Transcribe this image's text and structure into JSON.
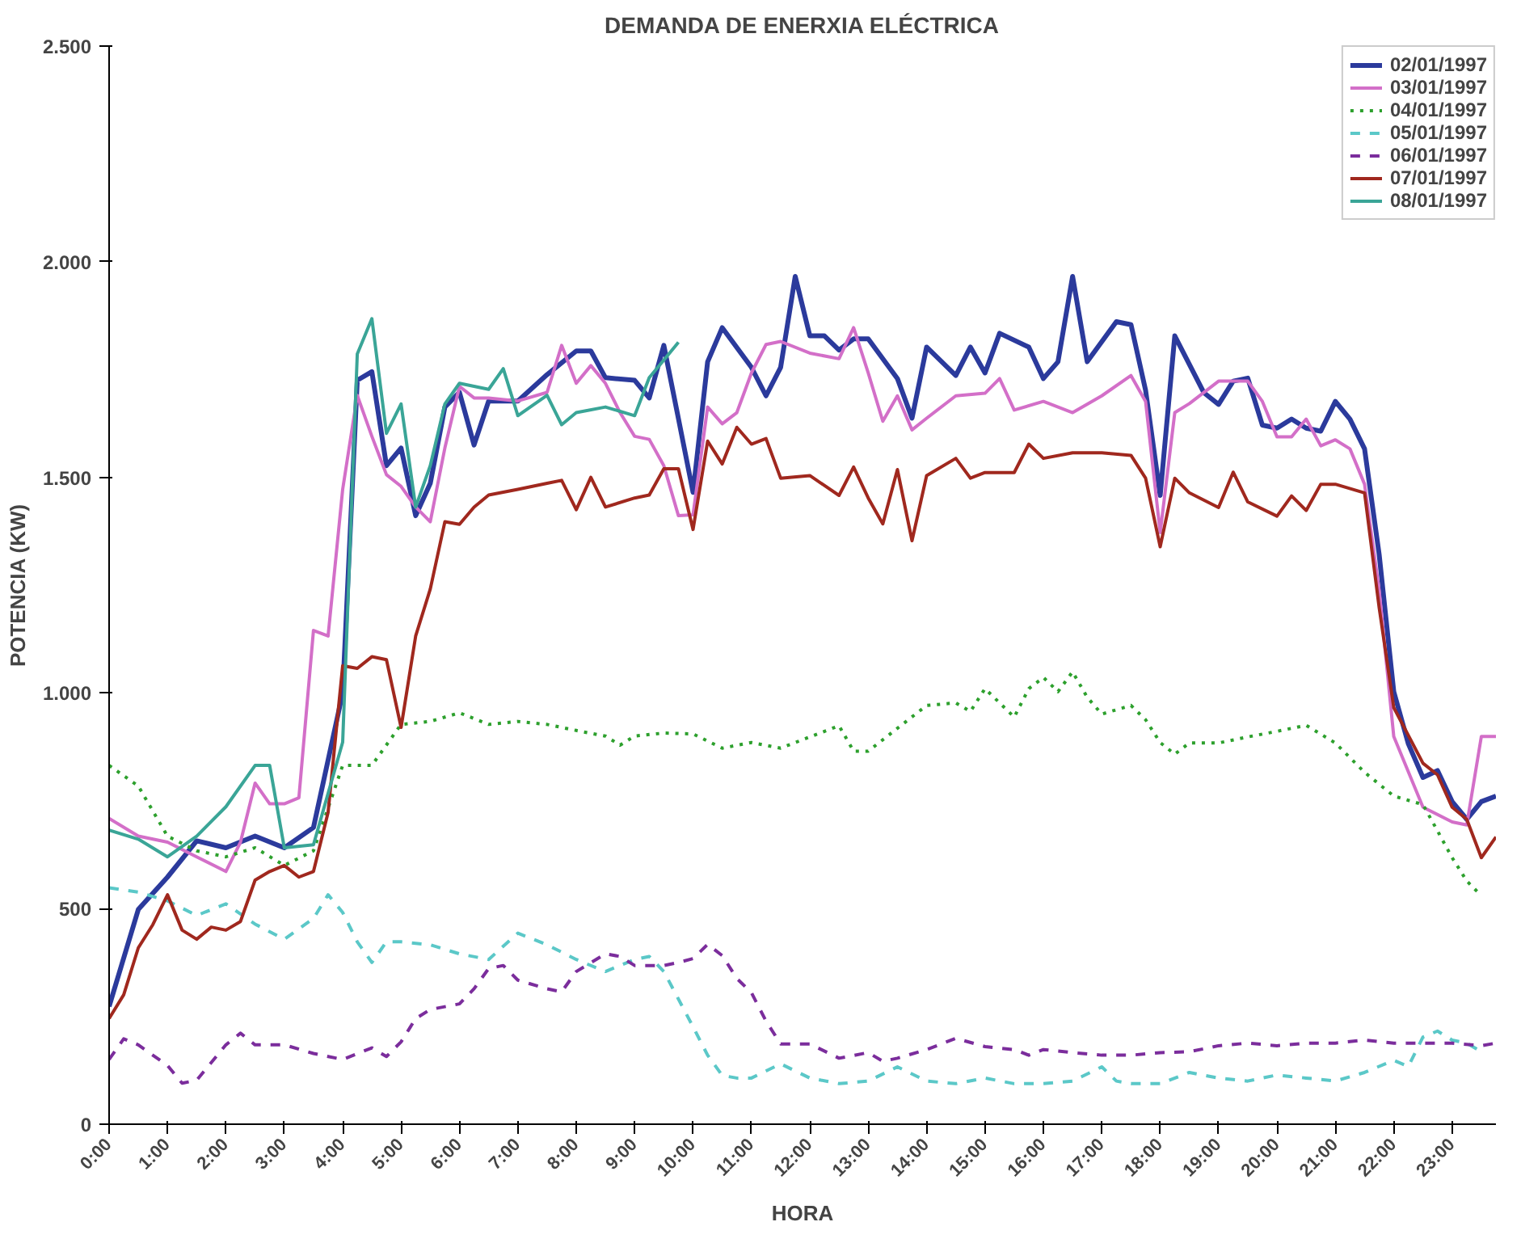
{
  "chart_data": {
    "type": "line",
    "title": "DEMANDA DE ENERXIA ELÉCTRICA",
    "xlabel": "HORA",
    "ylabel": "POTENCIA (KW)",
    "xlim": [
      0,
      23.75
    ],
    "xticks": [
      {
        "value": 0,
        "label": "0:00"
      },
      {
        "value": 1,
        "label": "1:00"
      },
      {
        "value": 2,
        "label": "2:00"
      },
      {
        "value": 3,
        "label": "3:00"
      },
      {
        "value": 4,
        "label": "4:00"
      },
      {
        "value": 5,
        "label": "5:00"
      },
      {
        "value": 6,
        "label": "6:00"
      },
      {
        "value": 7,
        "label": "7:00"
      },
      {
        "value": 8,
        "label": "8:00"
      },
      {
        "value": 9,
        "label": "9:00"
      },
      {
        "value": 10,
        "label": "10:00"
      },
      {
        "value": 11,
        "label": "11:00"
      },
      {
        "value": 12,
        "label": "12:00"
      },
      {
        "value": 13,
        "label": "13:00"
      },
      {
        "value": 14,
        "label": "14:00"
      },
      {
        "value": 15,
        "label": "15:00"
      },
      {
        "value": 16,
        "label": "16:00"
      },
      {
        "value": 17,
        "label": "17:00"
      },
      {
        "value": 18,
        "label": "18:00"
      },
      {
        "value": 19,
        "label": "19:00"
      },
      {
        "value": 20,
        "label": "20:00"
      },
      {
        "value": 21,
        "label": "21:00"
      },
      {
        "value": 22,
        "label": "22:00"
      },
      {
        "value": 23,
        "label": "23:00"
      }
    ],
    "ylim": [
      0,
      2500
    ],
    "yticks": [
      0,
      {
        "value": 500,
        "label": "500"
      },
      {
        "value": 1000,
        "label": "1.000"
      },
      {
        "value": 1500,
        "label": "1.500"
      },
      {
        "value": 2000,
        "label": "2.000"
      },
      {
        "value": 2500,
        "label": "2.500"
      }
    ],
    "grid": false,
    "legend": "top right",
    "marker": "none",
    "series": [
      {
        "name": "02/01/1997",
        "color": "#2b3a9c",
        "line_style": "solid",
        "x": [
          0,
          0.5,
          1,
          1.5,
          2,
          2.5,
          3,
          3.5,
          4,
          4.25,
          4.5,
          4.75,
          5,
          5.25,
          5.5,
          5.75,
          6,
          6.25,
          6.5,
          7,
          7.5,
          8,
          8.25,
          8.5,
          9,
          9.25,
          9.5,
          9.75,
          10,
          10.25,
          10.5,
          11,
          11.25,
          11.5,
          11.75,
          12,
          12.25,
          12.5,
          12.75,
          13,
          13.5,
          13.75,
          14,
          14.5,
          14.75,
          15,
          15.25,
          15.75,
          16,
          16.25,
          16.5,
          16.75,
          17.25,
          17.5,
          17.75,
          18,
          18.25,
          18.75,
          19,
          19.25,
          19.5,
          19.75,
          20,
          20.25,
          20.5,
          20.75,
          21,
          21.25,
          21.5,
          21.75,
          22,
          22.25,
          22.5,
          22.75,
          23,
          23.25,
          23.5,
          23.75
        ],
        "values": [
          273,
          498,
          573,
          657,
          641,
          668,
          641,
          688,
          1000,
          1725,
          1745,
          1527,
          1568,
          1411,
          1486,
          1663,
          1697,
          1575,
          1677,
          1677,
          1738,
          1793,
          1793,
          1731,
          1725,
          1684,
          1806,
          1636,
          1465,
          1768,
          1847,
          1755,
          1689,
          1755,
          1966,
          1828,
          1828,
          1795,
          1821,
          1821,
          1729,
          1637,
          1802,
          1736,
          1802,
          1742,
          1834,
          1802,
          1729,
          1768,
          1966,
          1768,
          1861,
          1854,
          1702,
          1458,
          1828,
          1696,
          1669,
          1723,
          1730,
          1621,
          1614,
          1635,
          1614,
          1607,
          1676,
          1635,
          1566,
          1321,
          1003,
          882,
          804,
          820,
          748,
          707,
          748,
          761
        ]
      },
      {
        "name": "03/01/1997",
        "color": "#d36fc8",
        "line_style": "solid",
        "x": [
          0,
          0.5,
          1,
          1.5,
          2,
          2.25,
          2.5,
          2.75,
          3,
          3.25,
          3.5,
          3.75,
          4,
          4.25,
          4.5,
          4.75,
          5,
          5.25,
          5.5,
          5.75,
          6,
          6.25,
          6.5,
          7,
          7.5,
          7.75,
          8,
          8.25,
          8.5,
          8.75,
          9,
          9.25,
          9.5,
          9.75,
          10,
          10.25,
          10.5,
          10.75,
          11,
          11.25,
          11.5,
          12,
          12.5,
          12.75,
          13,
          13.25,
          13.5,
          13.75,
          14,
          14.5,
          15,
          15.25,
          15.5,
          16,
          16.5,
          17,
          17.5,
          17.75,
          18,
          18.25,
          18.5,
          19,
          19.5,
          19.75,
          20,
          20.25,
          20.5,
          20.75,
          21,
          21.25,
          21.5,
          21.75,
          22,
          22.5,
          23,
          23.25,
          23.5,
          23.75
        ],
        "values": [
          709,
          668,
          654,
          620,
          586,
          654,
          791,
          743,
          743,
          757,
          1145,
          1132,
          1472,
          1690,
          1595,
          1506,
          1479,
          1431,
          1397,
          1568,
          1711,
          1684,
          1684,
          1677,
          1697,
          1806,
          1718,
          1759,
          1718,
          1650,
          1595,
          1588,
          1527,
          1411,
          1413,
          1663,
          1624,
          1650,
          1742,
          1808,
          1815,
          1788,
          1775,
          1847,
          1742,
          1630,
          1689,
          1610,
          1637,
          1689,
          1695,
          1729,
          1656,
          1676,
          1650,
          1689,
          1736,
          1676,
          1372,
          1650,
          1671,
          1723,
          1723,
          1676,
          1594,
          1594,
          1635,
          1573,
          1587,
          1566,
          1484,
          1238,
          899,
          735,
          701,
          694,
          899,
          899
        ]
      },
      {
        "name": "04/01/1997",
        "color": "#2da02d",
        "line_style": "dotted",
        "x": [
          0,
          0.5,
          1,
          1.5,
          2,
          2.5,
          3,
          3.5,
          4,
          4.5,
          5,
          5.5,
          6,
          6.5,
          7,
          7.5,
          8,
          8.5,
          8.75,
          9,
          9.5,
          10,
          10.5,
          11,
          11.5,
          12,
          12.5,
          12.75,
          13,
          13.5,
          14,
          14.5,
          14.75,
          15,
          15.25,
          15.5,
          15.75,
          16,
          16.25,
          16.5,
          16.75,
          17,
          17.5,
          17.75,
          18,
          18.25,
          18.5,
          19,
          19.5,
          20,
          20.5,
          21,
          21.5,
          22,
          22.5,
          22.75,
          23,
          23.25,
          23.5
        ],
        "values": [
          832,
          784,
          668,
          634,
          620,
          641,
          600,
          634,
          832,
          832,
          927,
          934,
          954,
          927,
          934,
          927,
          913,
          900,
          879,
          900,
          907,
          905,
          872,
          885,
          872,
          898,
          924,
          865,
          865,
          918,
          971,
          977,
          957,
          1010,
          977,
          944,
          1010,
          1036,
          1003,
          1049,
          990,
          951,
          971,
          938,
          885,
          858,
          884,
          884,
          898,
          911,
          925,
          884,
          816,
          761,
          741,
          680,
          618,
          564,
          530
        ]
      },
      {
        "name": "05/01/1997",
        "color": "#5bc8c8",
        "line_style": "dashed",
        "x": [
          0,
          0.5,
          1,
          1.5,
          2,
          2.5,
          3,
          3.5,
          3.75,
          4,
          4.25,
          4.5,
          4.75,
          5,
          5.5,
          6,
          6.5,
          7,
          7.5,
          8,
          8.5,
          9,
          9.25,
          9.5,
          10,
          10.25,
          10.5,
          10.75,
          11,
          11.5,
          12,
          12.5,
          13,
          13.5,
          14,
          14.5,
          15,
          15.5,
          16,
          16.5,
          17,
          17.25,
          17.5,
          18,
          18.5,
          19,
          19.5,
          20,
          20.5,
          21,
          21.5,
          22,
          22.25,
          22.5,
          22.75,
          23,
          23.25,
          23.5
        ],
        "values": [
          548,
          538,
          518,
          484,
          511,
          464,
          429,
          477,
          532,
          491,
          423,
          375,
          423,
          423,
          416,
          395,
          382,
          443,
          416,
          382,
          354,
          382,
          389,
          354,
          226,
          160,
          113,
          107,
          107,
          140,
          107,
          94,
          100,
          133,
          100,
          94,
          107,
          94,
          94,
          100,
          133,
          100,
          94,
          94,
          120,
          107,
          100,
          114,
          107,
          100,
          120,
          148,
          134,
          202,
          216,
          195,
          188,
          168
        ]
      },
      {
        "name": "06/01/1997",
        "color": "#7b2d9c",
        "line_style": "dashed",
        "x": [
          0,
          0.25,
          0.5,
          1,
          1.25,
          1.5,
          2,
          2.25,
          2.5,
          3,
          3.5,
          4,
          4.5,
          4.75,
          5,
          5.25,
          5.5,
          6,
          6.25,
          6.5,
          6.75,
          7,
          7.5,
          7.75,
          8,
          8.5,
          8.75,
          9,
          9.5,
          9.75,
          10,
          10.25,
          10.5,
          10.75,
          11,
          11.25,
          11.5,
          12,
          12.5,
          13,
          13.25,
          13.5,
          14,
          14.5,
          15,
          15.5,
          15.75,
          16,
          16.5,
          17,
          17.25,
          17.5,
          18,
          18.5,
          19,
          19.5,
          20,
          20.5,
          21,
          21.5,
          22,
          22.5,
          23,
          23.5,
          23.75
        ],
        "values": [
          150,
          198,
          184,
          136,
          95,
          102,
          184,
          211,
          184,
          184,
          164,
          150,
          177,
          157,
          191,
          245,
          266,
          279,
          314,
          361,
          368,
          334,
          314,
          307,
          354,
          395,
          389,
          368,
          368,
          375,
          384,
          417,
          391,
          338,
          305,
          239,
          186,
          186,
          153,
          166,
          146,
          153,
          173,
          199,
          180,
          173,
          160,
          173,
          166,
          160,
          160,
          160,
          166,
          168,
          182,
          188,
          182,
          188,
          188,
          195,
          188,
          188,
          188,
          182,
          188
        ]
      },
      {
        "name": "07/01/1997",
        "color": "#a0281e",
        "line_style": "solid",
        "x": [
          0,
          0.25,
          0.5,
          0.75,
          1,
          1.25,
          1.5,
          1.75,
          2,
          2.25,
          2.5,
          2.75,
          3,
          3.25,
          3.5,
          3.75,
          4,
          4.25,
          4.5,
          4.75,
          5,
          5.25,
          5.5,
          5.75,
          6,
          6.25,
          6.5,
          7,
          7.5,
          7.75,
          8,
          8.25,
          8.5,
          9,
          9.25,
          9.5,
          9.75,
          10,
          10.25,
          10.5,
          10.75,
          11,
          11.25,
          11.5,
          12,
          12.5,
          12.75,
          13,
          13.25,
          13.5,
          13.75,
          14,
          14.5,
          14.75,
          15,
          15.5,
          15.75,
          16,
          16.5,
          17,
          17.5,
          17.75,
          18,
          18.25,
          18.5,
          19,
          19.25,
          19.5,
          20,
          20.25,
          20.5,
          20.75,
          21,
          21.5,
          21.75,
          22,
          22.5,
          22.75,
          23,
          23.25,
          23.5,
          23.75
        ],
        "values": [
          245,
          300,
          409,
          463,
          532,
          450,
          429,
          457,
          450,
          470,
          566,
          586,
          600,
          573,
          586,
          723,
          1063,
          1057,
          1084,
          1077,
          920,
          1132,
          1241,
          1397,
          1391,
          1431,
          1459,
          1472,
          1486,
          1493,
          1425,
          1500,
          1431,
          1452,
          1459,
          1520,
          1520,
          1379,
          1584,
          1531,
          1616,
          1577,
          1590,
          1498,
          1504,
          1458,
          1524,
          1452,
          1392,
          1518,
          1353,
          1504,
          1544,
          1498,
          1511,
          1511,
          1577,
          1544,
          1557,
          1557,
          1551,
          1498,
          1339,
          1498,
          1464,
          1430,
          1512,
          1443,
          1410,
          1457,
          1423,
          1484,
          1484,
          1464,
          1198,
          966,
          837,
          810,
          735,
          707,
          618,
          666
        ]
      },
      {
        "name": "08/01/1997",
        "color": "#3aa597",
        "line_style": "solid",
        "x": [
          0,
          0.5,
          1,
          1.5,
          2,
          2.5,
          2.75,
          3,
          3.5,
          4,
          4.25,
          4.5,
          4.75,
          5,
          5.25,
          5.5,
          5.75,
          6,
          6.5,
          6.75,
          7,
          7.5,
          7.75,
          8,
          8.5,
          9,
          9.25,
          9.5,
          9.75
        ],
        "values": [
          682,
          661,
          620,
          668,
          736,
          832,
          832,
          641,
          648,
          886,
          1786,
          1868,
          1602,
          1670,
          1431,
          1527,
          1670,
          1718,
          1704,
          1752,
          1643,
          1690,
          1622,
          1650,
          1663,
          1643,
          1731,
          1772,
          1813
        ]
      }
    ]
  }
}
